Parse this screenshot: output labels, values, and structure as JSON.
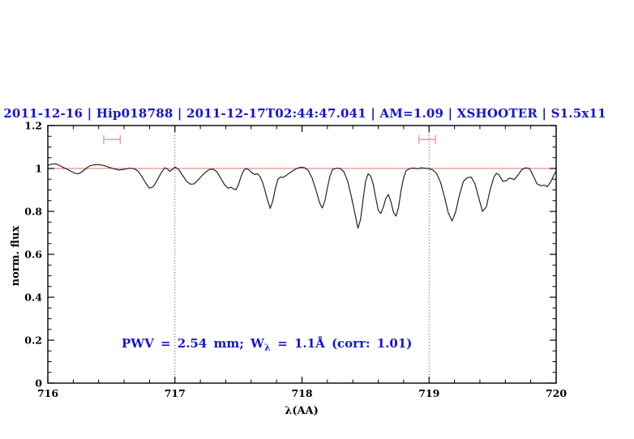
{
  "chart_data": {
    "type": "line",
    "title": "2011-12-16 | Hip018788 | 2011-12-17T02:44:47.041 | AM=1.09 | XSHOOTER | S1.5x11",
    "title_color": "#1515cd",
    "xlabel": "λ(AA)",
    "ylabel": "norm. flux",
    "xlim": [
      716,
      720
    ],
    "ylim": [
      0,
      1.2
    ],
    "grid": "off",
    "legend": "none",
    "x_ticks": {
      "major": [
        716,
        717,
        718,
        719,
        720
      ],
      "labels": [
        "716",
        "717",
        "718",
        "719",
        "720"
      ],
      "minor_step": 0.2
    },
    "y_ticks": {
      "major": [
        0,
        0.2,
        0.4,
        0.6,
        0.8,
        1,
        1.2
      ],
      "labels": [
        "0",
        "0.2",
        "0.4",
        "0.6",
        "0.8",
        "1",
        "1.2"
      ],
      "minor_step": 0.05
    },
    "dotted_vlines": [
      717,
      719
    ],
    "continuum": {
      "y": 1.0,
      "color": "#e57070"
    },
    "pwv_markers": {
      "y": 1.135,
      "color": "#f2a0a0",
      "intervals": [
        [
          716.44,
          716.57
        ],
        [
          718.92,
          719.05
        ]
      ]
    },
    "annotation": {
      "pre": "PWV = 2.54 mm; W",
      "sub": "λ",
      "post": " = 1.1Å (corr: 1.01)",
      "color": "#1515cd"
    },
    "series": [
      {
        "name": "spectrum",
        "color": "#1c1c1c",
        "points": [
          [
            716.0,
            1.015
          ],
          [
            716.03,
            1.02
          ],
          [
            716.06,
            1.022
          ],
          [
            716.09,
            1.015
          ],
          [
            716.12,
            1.005
          ],
          [
            716.15,
            0.997
          ],
          [
            716.18,
            0.988
          ],
          [
            716.21,
            0.978
          ],
          [
            716.24,
            0.975
          ],
          [
            716.27,
            0.985
          ],
          [
            716.3,
            1.0
          ],
          [
            716.33,
            1.012
          ],
          [
            716.36,
            1.017
          ],
          [
            716.4,
            1.018
          ],
          [
            716.44,
            1.014
          ],
          [
            716.48,
            1.006
          ],
          [
            716.52,
            0.999
          ],
          [
            716.56,
            0.993
          ],
          [
            716.6,
            0.996
          ],
          [
            716.64,
            1.001
          ],
          [
            716.68,
            0.999
          ],
          [
            716.71,
            0.988
          ],
          [
            716.74,
            0.962
          ],
          [
            716.77,
            0.932
          ],
          [
            716.8,
            0.908
          ],
          [
            716.83,
            0.915
          ],
          [
            716.86,
            0.945
          ],
          [
            716.89,
            0.978
          ],
          [
            716.92,
            1.003
          ],
          [
            716.94,
            0.998
          ],
          [
            716.96,
            0.986
          ],
          [
            716.98,
            0.995
          ],
          [
            717.0,
            1.007
          ],
          [
            717.03,
            0.995
          ],
          [
            717.06,
            0.968
          ],
          [
            717.09,
            0.942
          ],
          [
            717.12,
            0.927
          ],
          [
            717.15,
            0.928
          ],
          [
            717.18,
            0.945
          ],
          [
            717.21,
            0.965
          ],
          [
            717.24,
            0.982
          ],
          [
            717.27,
            0.995
          ],
          [
            717.3,
            0.997
          ],
          [
            717.33,
            0.985
          ],
          [
            717.36,
            0.955
          ],
          [
            717.39,
            0.925
          ],
          [
            717.42,
            0.908
          ],
          [
            717.44,
            0.913
          ],
          [
            717.46,
            0.905
          ],
          [
            717.48,
            0.901
          ],
          [
            717.5,
            0.925
          ],
          [
            717.52,
            0.962
          ],
          [
            717.54,
            0.99
          ],
          [
            717.56,
            1.0
          ],
          [
            717.58,
            0.994
          ],
          [
            717.61,
            0.978
          ],
          [
            717.63,
            0.972
          ],
          [
            717.65,
            0.976
          ],
          [
            717.67,
            0.962
          ],
          [
            717.69,
            0.935
          ],
          [
            717.71,
            0.895
          ],
          [
            717.73,
            0.85
          ],
          [
            717.75,
            0.814
          ],
          [
            717.77,
            0.848
          ],
          [
            717.79,
            0.905
          ],
          [
            717.81,
            0.95
          ],
          [
            717.83,
            0.96
          ],
          [
            717.85,
            0.958
          ],
          [
            717.87,
            0.965
          ],
          [
            717.9,
            0.978
          ],
          [
            717.93,
            0.99
          ],
          [
            717.96,
            1.0
          ],
          [
            717.99,
            1.006
          ],
          [
            718.02,
            1.004
          ],
          [
            718.05,
            0.99
          ],
          [
            718.08,
            0.955
          ],
          [
            718.11,
            0.9
          ],
          [
            718.14,
            0.838
          ],
          [
            718.16,
            0.816
          ],
          [
            718.18,
            0.848
          ],
          [
            718.2,
            0.91
          ],
          [
            718.22,
            0.965
          ],
          [
            718.24,
            0.995
          ],
          [
            718.27,
            1.001
          ],
          [
            718.3,
            1.0
          ],
          [
            718.33,
            0.985
          ],
          [
            718.36,
            0.94
          ],
          [
            718.39,
            0.865
          ],
          [
            718.42,
            0.78
          ],
          [
            718.44,
            0.722
          ],
          [
            718.46,
            0.76
          ],
          [
            718.48,
            0.85
          ],
          [
            718.5,
            0.94
          ],
          [
            718.52,
            0.975
          ],
          [
            718.54,
            0.965
          ],
          [
            718.56,
            0.928
          ],
          [
            718.58,
            0.865
          ],
          [
            718.6,
            0.805
          ],
          [
            718.62,
            0.79
          ],
          [
            718.64,
            0.82
          ],
          [
            718.66,
            0.862
          ],
          [
            718.68,
            0.878
          ],
          [
            718.7,
            0.845
          ],
          [
            718.72,
            0.795
          ],
          [
            718.74,
            0.778
          ],
          [
            718.76,
            0.82
          ],
          [
            718.78,
            0.9
          ],
          [
            718.8,
            0.958
          ],
          [
            718.82,
            0.99
          ],
          [
            718.85,
            1.0
          ],
          [
            718.88,
            1.002
          ],
          [
            718.91,
            0.999
          ],
          [
            718.94,
            1.003
          ],
          [
            718.97,
            1.001
          ],
          [
            719.0,
            0.999
          ],
          [
            719.03,
            0.993
          ],
          [
            719.06,
            0.975
          ],
          [
            719.09,
            0.935
          ],
          [
            719.12,
            0.87
          ],
          [
            719.15,
            0.795
          ],
          [
            719.18,
            0.755
          ],
          [
            719.21,
            0.8
          ],
          [
            719.24,
            0.88
          ],
          [
            719.27,
            0.94
          ],
          [
            719.3,
            0.957
          ],
          [
            719.33,
            0.96
          ],
          [
            719.36,
            0.93
          ],
          [
            719.39,
            0.865
          ],
          [
            719.42,
            0.8
          ],
          [
            719.45,
            0.82
          ],
          [
            719.48,
            0.9
          ],
          [
            719.51,
            0.96
          ],
          [
            719.53,
            0.978
          ],
          [
            719.55,
            0.97
          ],
          [
            719.58,
            0.94
          ],
          [
            719.61,
            0.944
          ],
          [
            719.63,
            0.955
          ],
          [
            719.65,
            0.953
          ],
          [
            719.67,
            0.948
          ],
          [
            719.7,
            0.97
          ],
          [
            719.73,
            0.995
          ],
          [
            719.76,
            1.003
          ],
          [
            719.79,
            1.0
          ],
          [
            719.82,
            0.965
          ],
          [
            719.85,
            0.928
          ],
          [
            719.88,
            0.92
          ],
          [
            719.91,
            0.922
          ],
          [
            719.93,
            0.915
          ],
          [
            719.96,
            0.94
          ],
          [
            719.98,
            0.968
          ],
          [
            720.0,
            0.988
          ]
        ]
      }
    ]
  }
}
